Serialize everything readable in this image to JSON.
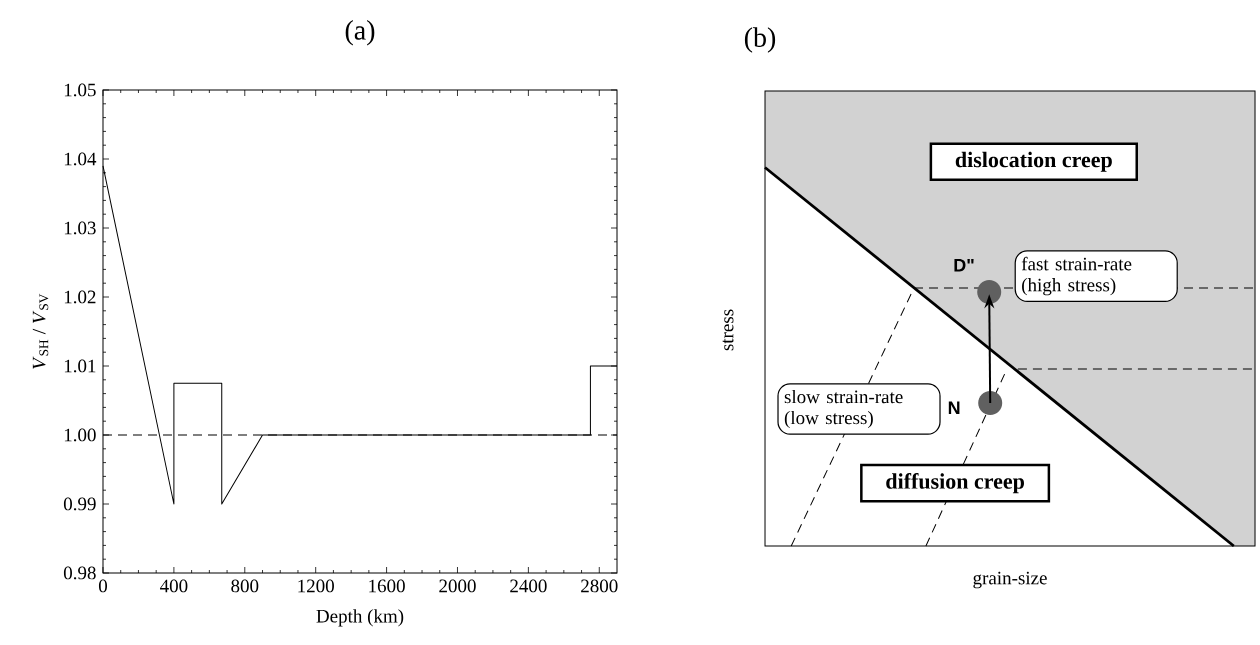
{
  "chart_data": [
    {
      "type": "line",
      "title": "(a)",
      "xlabel": "Depth (km)",
      "ylabel": "*V*$_{SH}$ / *V*$_{SV}$",
      "x": [
        0,
        400,
        400,
        670,
        670,
        900,
        2750,
        2750,
        2900
      ],
      "series": [
        {
          "color": "#000000",
          "values": [
            1.039,
            0.99,
            1.0075,
            1.0075,
            0.99,
            1.0,
            1.0,
            1.01,
            1.01
          ]
        }
      ],
      "xlim": [
        0,
        2900
      ],
      "xticks": [
        0,
        400,
        800,
        1200,
        1600,
        2000,
        2400,
        2800
      ],
      "ylim": [
        0.98,
        1.05
      ],
      "yticks": [
        0.98,
        0.99,
        {
          "value": 1.0,
          "label": "1.00"
        },
        1.01,
        1.02,
        1.03,
        1.04,
        1.05
      ],
      "ref_lines": [
        {
          "axis": "y",
          "value": 1.0,
          "line_style": "dashed",
          "color": "#000000"
        }
      ]
    },
    {
      "type": "other",
      "title": "(b)",
      "xlabel": "grain-size",
      "ylabel": "stress",
      "annotations": [
        "dislocation creep",
        "fast strain-rate (high stress)",
        "slow strain-rate (low stress)",
        "diffusion creep",
        "D\"",
        "N"
      ]
    }
  ]
}
